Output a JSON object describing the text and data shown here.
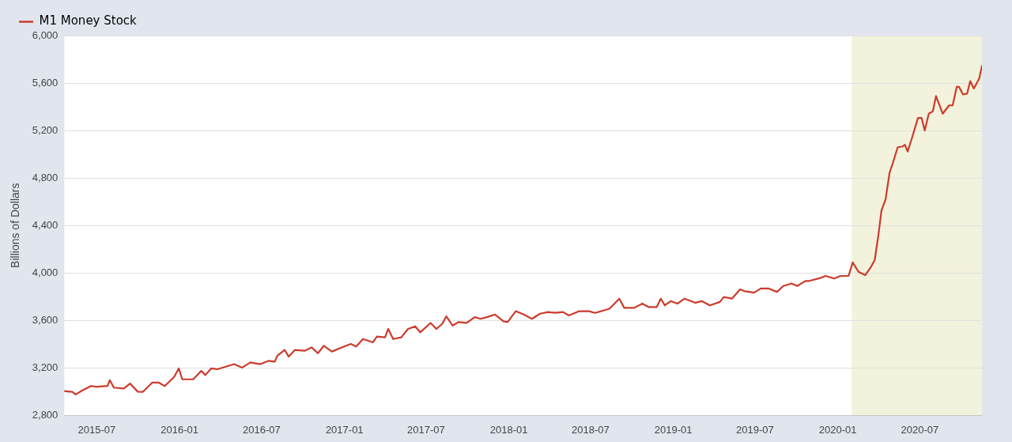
{
  "chart_data": {
    "type": "line",
    "ylabel": "Billions of Dollars",
    "legend": "top left",
    "grid": "y",
    "marker": "none",
    "line_style": "solid",
    "x": [
      "2015-04-20",
      "2015-05-08",
      "2015-05-15",
      "2015-05-31",
      "2015-06-18",
      "2015-07-01",
      "2015-07-25",
      "2015-07-30",
      "2015-08-08",
      "2015-08-30",
      "2015-09-13",
      "2015-09-30",
      "2015-10-11",
      "2015-11-01",
      "2015-11-16",
      "2015-11-29",
      "2015-12-20",
      "2015-12-30",
      "2016-01-07",
      "2016-01-31",
      "2016-02-18",
      "2016-02-27",
      "2016-03-11",
      "2016-03-25",
      "2016-04-18",
      "2016-05-01",
      "2016-05-19",
      "2016-06-06",
      "2016-06-28",
      "2016-07-17",
      "2016-07-30",
      "2016-08-05",
      "2016-08-21",
      "2016-08-30",
      "2016-09-13",
      "2016-10-05",
      "2016-10-20",
      "2016-11-03",
      "2016-11-16",
      "2016-12-04",
      "2016-12-31",
      "2017-01-15",
      "2017-01-27",
      "2017-02-11",
      "2017-03-05",
      "2017-03-14",
      "2017-04-01",
      "2017-04-08",
      "2017-04-19",
      "2017-05-07",
      "2017-05-22",
      "2017-06-07",
      "2017-06-18",
      "2017-07-11",
      "2017-07-24",
      "2017-08-06",
      "2017-08-15",
      "2017-08-29",
      "2017-09-11",
      "2017-09-29",
      "2017-10-17",
      "2017-10-30",
      "2017-11-13",
      "2017-12-01",
      "2017-12-20",
      "2017-12-29",
      "2018-01-16",
      "2018-02-03",
      "2018-02-21",
      "2018-03-11",
      "2018-03-29",
      "2018-04-13",
      "2018-05-01",
      "2018-05-14",
      "2018-06-06",
      "2018-06-28",
      "2018-07-11",
      "2018-07-31",
      "2018-08-12",
      "2018-09-03",
      "2018-09-14",
      "2018-10-06",
      "2018-10-24",
      "2018-11-07",
      "2018-11-25",
      "2018-12-04",
      "2018-12-13",
      "2018-12-26",
      "2019-01-10",
      "2019-01-26",
      "2019-02-19",
      "2019-03-05",
      "2019-03-23",
      "2019-04-14",
      "2019-04-23",
      "2019-05-11",
      "2019-05-29",
      "2019-06-07",
      "2019-06-29",
      "2019-07-14",
      "2019-08-01",
      "2019-08-19",
      "2019-09-02",
      "2019-09-20",
      "2019-10-03",
      "2019-10-21",
      "2019-10-30",
      "2019-11-26",
      "2019-12-05",
      "2019-12-24",
      "2020-01-07",
      "2020-01-25",
      "2020-02-03",
      "2020-02-16",
      "2020-03-02",
      "2020-03-14",
      "2020-03-23",
      "2020-03-31",
      "2020-04-07",
      "2020-04-16",
      "2020-04-25",
      "2020-05-02",
      "2020-05-13",
      "2020-05-24",
      "2020-05-29",
      "2020-06-04",
      "2020-06-13",
      "2020-06-27",
      "2020-07-05",
      "2020-07-12",
      "2020-07-21",
      "2020-07-30",
      "2020-08-06",
      "2020-08-21",
      "2020-09-04",
      "2020-09-12",
      "2020-09-21",
      "2020-09-26",
      "2020-10-05",
      "2020-10-14",
      "2020-10-21",
      "2020-10-29",
      "2020-11-10",
      "2020-11-16"
    ],
    "series": [
      {
        "name": "M1 Money Stock",
        "color": "#cc3b2c",
        "values": [
          3005,
          2998,
          2977,
          3012,
          3048,
          3041,
          3048,
          3097,
          3034,
          3027,
          3069,
          3000,
          2998,
          3076,
          3076,
          3048,
          3126,
          3196,
          3104,
          3104,
          3175,
          3140,
          3196,
          3189,
          3217,
          3232,
          3203,
          3246,
          3232,
          3260,
          3253,
          3303,
          3352,
          3296,
          3352,
          3345,
          3373,
          3324,
          3387,
          3338,
          3380,
          3402,
          3380,
          3444,
          3416,
          3465,
          3458,
          3529,
          3444,
          3458,
          3529,
          3550,
          3500,
          3579,
          3529,
          3572,
          3635,
          3557,
          3586,
          3579,
          3628,
          3614,
          3628,
          3650,
          3593,
          3586,
          3678,
          3650,
          3614,
          3657,
          3671,
          3664,
          3671,
          3642,
          3678,
          3678,
          3664,
          3685,
          3699,
          3784,
          3706,
          3706,
          3742,
          3713,
          3713,
          3784,
          3727,
          3763,
          3742,
          3784,
          3749,
          3763,
          3727,
          3756,
          3798,
          3784,
          3862,
          3848,
          3834,
          3869,
          3869,
          3841,
          3890,
          3912,
          3890,
          3933,
          3933,
          3961,
          3975,
          3953,
          3975,
          3975,
          4089,
          4010,
          3982,
          4047,
          4110,
          4315,
          4527,
          4619,
          4846,
          4924,
          5059,
          5066,
          5080,
          5023,
          5129,
          5306,
          5306,
          5200,
          5342,
          5362,
          5490,
          5342,
          5412,
          5412,
          5568,
          5568,
          5504,
          5511,
          5617,
          5554,
          5639,
          5745
        ]
      }
    ],
    "xlim": [
      "2015-04-20",
      "2020-11-16"
    ],
    "xticks": [
      "2015-07",
      "2016-01",
      "2016-07",
      "2017-01",
      "2017-07",
      "2018-01",
      "2018-07",
      "2019-01",
      "2019-07",
      "2020-01",
      "2020-07"
    ],
    "ylim": [
      2800,
      6000
    ],
    "yticks": [
      {
        "value": 2800,
        "label": "2,800"
      },
      {
        "value": 3200,
        "label": "3,200"
      },
      {
        "value": 3600,
        "label": "3,600"
      },
      {
        "value": 4000,
        "label": "4,000"
      },
      {
        "value": 4400,
        "label": "4,400"
      },
      {
        "value": 4800,
        "label": "4,800"
      },
      {
        "value": 5200,
        "label": "5,200"
      },
      {
        "value": 5600,
        "label": "5,600"
      },
      {
        "value": 6000,
        "label": "6,000"
      }
    ],
    "bands": [
      {
        "axis": "x",
        "from": "2020-02-01",
        "to": "2020-11-16",
        "color": "#f3f2dc"
      }
    ]
  }
}
